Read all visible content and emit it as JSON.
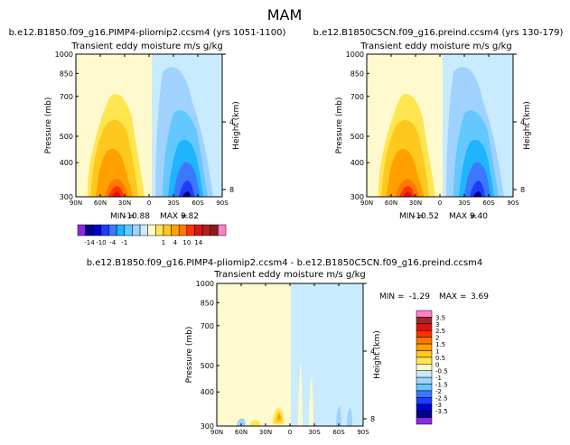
{
  "page_title": "MAM",
  "chart_data": [
    {
      "type": "contour",
      "case": "b.e12.B1850.f09_g16.PIMP4-pliomip2.ccsm4 (yrs 1051-1100)",
      "title": "Transient eddy moisture m/s g/kg",
      "ylabel": "Pressure (mb)",
      "y2label": "Height (km)",
      "xticks": [
        "90N",
        "60N",
        "30N",
        "0",
        "30S",
        "60S",
        "90S"
      ],
      "yticks": [
        "300",
        "400",
        "500",
        "700",
        "850",
        "1000"
      ],
      "y2ticks": [
        "8",
        "4"
      ],
      "xlim": [
        90,
        -90
      ],
      "ylim": [
        1000,
        300
      ],
      "min_label": "MIN =",
      "min": "-10.88",
      "max_label": "MAX =",
      "max": "9.82"
    },
    {
      "type": "contour",
      "case": "b.e12.B1850C5CN.f09_g16.preind.ccsm4 (yrs 130-179)",
      "title": "Transient eddy moisture m/s g/kg",
      "ylabel": "Pressure (mb)",
      "y2label": "Height (km)",
      "xticks": [
        "90N",
        "60N",
        "30N",
        "0",
        "30S",
        "60S",
        "90S"
      ],
      "yticks": [
        "300",
        "400",
        "500",
        "700",
        "850",
        "1000"
      ],
      "y2ticks": [
        "8",
        "4"
      ],
      "xlim": [
        90,
        -90
      ],
      "ylim": [
        1000,
        300
      ],
      "min_label": "MIN =",
      "min": "-10.52",
      "max_label": "MAX =",
      "max": "9.40"
    },
    {
      "type": "contour",
      "case": "b.e12.B1850.f09_g16.PIMP4-pliomip2.ccsm4 - b.e12.B1850C5CN.f09_g16.preind.ccsm4",
      "title": "Transient eddy moisture m/s g/kg",
      "ylabel": "Pressure (mb)",
      "y2label": "Height (km)",
      "xticks": [
        "90N",
        "60N",
        "30N",
        "0",
        "30S",
        "60S",
        "90S"
      ],
      "yticks": [
        "300",
        "400",
        "500",
        "700",
        "850",
        "1000"
      ],
      "y2ticks": [
        "8",
        "4"
      ],
      "xlim": [
        90,
        -90
      ],
      "ylim": [
        1000,
        300
      ],
      "min_label": "MIN =",
      "min": "-1.29",
      "max_label": "MAX =",
      "max": "3.69"
    }
  ],
  "colorbar_top": {
    "labels": [
      "-14",
      "-10",
      "-4",
      "-1",
      "1",
      "4",
      "10",
      "14"
    ],
    "colors": [
      "#8a2be2",
      "#00008b",
      "#0000cd",
      "#1e3cff",
      "#3c78ff",
      "#1eb4ff",
      "#64c8ff",
      "#a0d2ff",
      "#c8ebff",
      "#fffacd",
      "#ffe650",
      "#ffc81e",
      "#ffa000",
      "#ff7800",
      "#ff3200",
      "#dc1414",
      "#b41e1e",
      "#8b1a1a",
      "#ff82c8"
    ]
  },
  "colorbar_diff": {
    "labels": [
      "3.5",
      "3",
      "2.5",
      "2",
      "1.5",
      "1",
      "0.5",
      "0",
      "-0.5",
      "-1",
      "-1.5",
      "-2",
      "-2.5",
      "-3",
      "-3.5"
    ],
    "colors": [
      "#ff82c8",
      "#a02828",
      "#dc1414",
      "#ff3200",
      "#ff7800",
      "#ffa000",
      "#ffc81e",
      "#ffe650",
      "#fffacd",
      "#c8ebff",
      "#a0d2ff",
      "#64c8ff",
      "#3c78ff",
      "#1e3cff",
      "#0000cd",
      "#00008b",
      "#8a2be2"
    ]
  }
}
